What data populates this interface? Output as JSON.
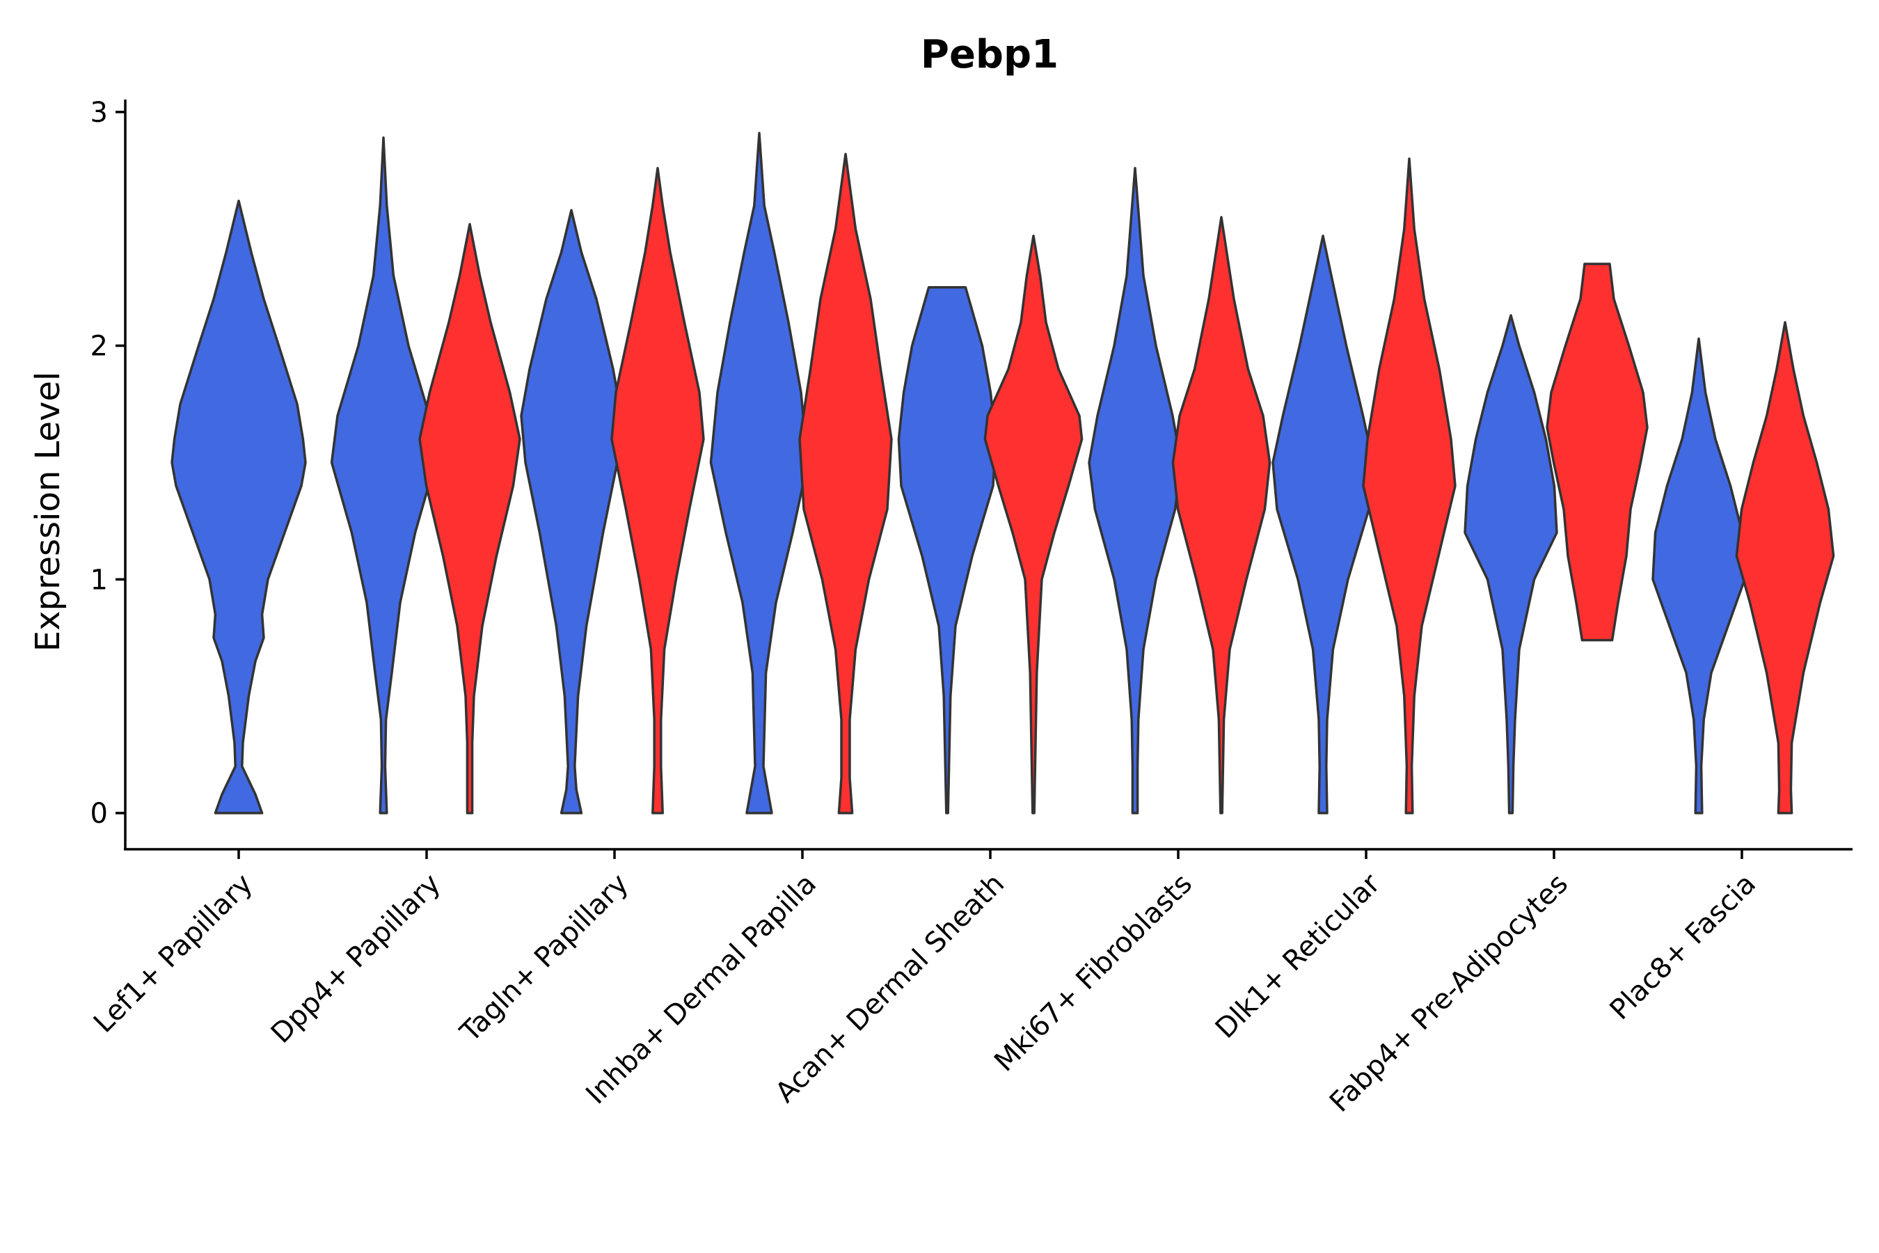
{
  "chart_data": {
    "type": "violin",
    "title": "Pebp1",
    "xlabel": "",
    "ylabel": "Expression Level",
    "ylim": [
      -0.15,
      3.05
    ],
    "yticks": [
      0,
      1,
      2,
      3
    ],
    "colors": {
      "blue": "#4169E1",
      "red": "#FF3030",
      "outline": "#333333"
    },
    "categories": [
      "Lef1+ Papillary",
      "Dpp4+ Papillary",
      "Tagln+ Papillary",
      "Inhba+ Dermal Papilla",
      "Acan+ Dermal Sheath",
      "Mki67+ Fibroblasts",
      "Dlk1+ Reticular",
      "Fabp4+ Pre-Adipocytes",
      "Plac8+ Fascia"
    ],
    "violins": [
      {
        "category": 0,
        "color": "blue",
        "min": 0,
        "max": 2.62,
        "profile": [
          [
            0,
            0.28
          ],
          [
            0.08,
            0.2
          ],
          [
            0.2,
            0.04
          ],
          [
            0.3,
            0.05
          ],
          [
            0.5,
            0.12
          ],
          [
            0.65,
            0.2
          ],
          [
            0.75,
            0.3
          ],
          [
            0.85,
            0.28
          ],
          [
            1.0,
            0.35
          ],
          [
            1.2,
            0.55
          ],
          [
            1.4,
            0.75
          ],
          [
            1.5,
            0.8
          ],
          [
            1.6,
            0.77
          ],
          [
            1.75,
            0.7
          ],
          [
            2.0,
            0.48
          ],
          [
            2.2,
            0.3
          ],
          [
            2.4,
            0.15
          ],
          [
            2.62,
            0
          ]
        ]
      },
      {
        "category": 1,
        "color": "blue",
        "min": 0,
        "max": 2.89,
        "profile": [
          [
            0,
            0.04
          ],
          [
            0.2,
            0.02
          ],
          [
            0.4,
            0.03
          ],
          [
            0.6,
            0.1
          ],
          [
            0.9,
            0.2
          ],
          [
            1.2,
            0.38
          ],
          [
            1.5,
            0.62
          ],
          [
            1.7,
            0.55
          ],
          [
            2.0,
            0.3
          ],
          [
            2.3,
            0.12
          ],
          [
            2.6,
            0.04
          ],
          [
            2.89,
            0
          ]
        ]
      },
      {
        "category": 1,
        "color": "red",
        "min": 0,
        "max": 2.52,
        "profile": [
          [
            0,
            0.03
          ],
          [
            0.3,
            0.03
          ],
          [
            0.5,
            0.05
          ],
          [
            0.8,
            0.15
          ],
          [
            1.1,
            0.32
          ],
          [
            1.4,
            0.52
          ],
          [
            1.6,
            0.6
          ],
          [
            1.8,
            0.48
          ],
          [
            2.1,
            0.25
          ],
          [
            2.3,
            0.12
          ],
          [
            2.52,
            0
          ]
        ]
      },
      {
        "category": 2,
        "color": "blue",
        "min": 0,
        "max": 2.58,
        "profile": [
          [
            0,
            0.12
          ],
          [
            0.1,
            0.06
          ],
          [
            0.2,
            0.04
          ],
          [
            0.5,
            0.08
          ],
          [
            0.8,
            0.18
          ],
          [
            1.2,
            0.38
          ],
          [
            1.5,
            0.55
          ],
          [
            1.7,
            0.6
          ],
          [
            1.9,
            0.5
          ],
          [
            2.2,
            0.3
          ],
          [
            2.4,
            0.12
          ],
          [
            2.58,
            0
          ]
        ]
      },
      {
        "category": 2,
        "color": "red",
        "min": 0,
        "max": 2.76,
        "profile": [
          [
            0,
            0.06
          ],
          [
            0.2,
            0.04
          ],
          [
            0.4,
            0.04
          ],
          [
            0.7,
            0.08
          ],
          [
            1.0,
            0.22
          ],
          [
            1.3,
            0.38
          ],
          [
            1.6,
            0.55
          ],
          [
            1.8,
            0.5
          ],
          [
            2.1,
            0.32
          ],
          [
            2.4,
            0.15
          ],
          [
            2.6,
            0.06
          ],
          [
            2.76,
            0
          ]
        ]
      },
      {
        "category": 3,
        "color": "blue",
        "min": 0,
        "max": 2.91,
        "profile": [
          [
            0,
            0.15
          ],
          [
            0.1,
            0.1
          ],
          [
            0.2,
            0.05
          ],
          [
            0.6,
            0.08
          ],
          [
            0.9,
            0.2
          ],
          [
            1.2,
            0.4
          ],
          [
            1.5,
            0.58
          ],
          [
            1.8,
            0.5
          ],
          [
            2.1,
            0.35
          ],
          [
            2.4,
            0.18
          ],
          [
            2.6,
            0.06
          ],
          [
            2.91,
            0
          ]
        ]
      },
      {
        "category": 3,
        "color": "red",
        "min": 0,
        "max": 2.82,
        "profile": [
          [
            0,
            0.08
          ],
          [
            0.15,
            0.05
          ],
          [
            0.4,
            0.05
          ],
          [
            0.7,
            0.12
          ],
          [
            1.0,
            0.28
          ],
          [
            1.3,
            0.5
          ],
          [
            1.6,
            0.55
          ],
          [
            1.9,
            0.42
          ],
          [
            2.2,
            0.3
          ],
          [
            2.5,
            0.12
          ],
          [
            2.82,
            0
          ]
        ]
      },
      {
        "category": 4,
        "color": "blue",
        "min": 0,
        "max": 2.25,
        "profile": [
          [
            0,
            0.01
          ],
          [
            0.5,
            0.04
          ],
          [
            0.8,
            0.1
          ],
          [
            1.1,
            0.3
          ],
          [
            1.4,
            0.55
          ],
          [
            1.6,
            0.58
          ],
          [
            1.8,
            0.52
          ],
          [
            2.0,
            0.42
          ],
          [
            2.15,
            0.3
          ],
          [
            2.25,
            0.22
          ],
          [
            2.25,
            0
          ]
        ]
      },
      {
        "category": 4,
        "color": "red",
        "min": 0,
        "max": 2.47,
        "profile": [
          [
            0,
            0.01
          ],
          [
            0.6,
            0.04
          ],
          [
            1.0,
            0.1
          ],
          [
            1.2,
            0.25
          ],
          [
            1.4,
            0.42
          ],
          [
            1.6,
            0.58
          ],
          [
            1.7,
            0.55
          ],
          [
            1.9,
            0.3
          ],
          [
            2.1,
            0.15
          ],
          [
            2.3,
            0.08
          ],
          [
            2.47,
            0
          ]
        ]
      },
      {
        "category": 5,
        "color": "blue",
        "min": 0,
        "max": 2.76,
        "profile": [
          [
            0,
            0.03
          ],
          [
            0.2,
            0.03
          ],
          [
            0.4,
            0.04
          ],
          [
            0.7,
            0.1
          ],
          [
            1.0,
            0.25
          ],
          [
            1.3,
            0.48
          ],
          [
            1.5,
            0.55
          ],
          [
            1.7,
            0.45
          ],
          [
            2.0,
            0.25
          ],
          [
            2.3,
            0.1
          ],
          [
            2.76,
            0
          ]
        ]
      },
      {
        "category": 5,
        "color": "red",
        "min": 0,
        "max": 2.55,
        "profile": [
          [
            0,
            0.01
          ],
          [
            0.4,
            0.03
          ],
          [
            0.7,
            0.1
          ],
          [
            1.0,
            0.3
          ],
          [
            1.3,
            0.52
          ],
          [
            1.5,
            0.58
          ],
          [
            1.7,
            0.5
          ],
          [
            1.9,
            0.32
          ],
          [
            2.2,
            0.15
          ],
          [
            2.55,
            0
          ]
        ]
      },
      {
        "category": 6,
        "color": "blue",
        "min": 0,
        "max": 2.47,
        "profile": [
          [
            0,
            0.05
          ],
          [
            0.2,
            0.04
          ],
          [
            0.4,
            0.05
          ],
          [
            0.7,
            0.12
          ],
          [
            1.0,
            0.3
          ],
          [
            1.3,
            0.55
          ],
          [
            1.5,
            0.6
          ],
          [
            1.7,
            0.48
          ],
          [
            2.0,
            0.28
          ],
          [
            2.3,
            0.1
          ],
          [
            2.47,
            0
          ]
        ]
      },
      {
        "category": 6,
        "color": "red",
        "min": 0,
        "max": 2.8,
        "profile": [
          [
            0,
            0.04
          ],
          [
            0.2,
            0.03
          ],
          [
            0.5,
            0.06
          ],
          [
            0.8,
            0.15
          ],
          [
            1.1,
            0.35
          ],
          [
            1.4,
            0.55
          ],
          [
            1.6,
            0.5
          ],
          [
            1.9,
            0.36
          ],
          [
            2.2,
            0.18
          ],
          [
            2.5,
            0.06
          ],
          [
            2.8,
            0
          ]
        ]
      },
      {
        "category": 7,
        "color": "blue",
        "min": 0,
        "max": 2.13,
        "profile": [
          [
            0,
            0.02
          ],
          [
            0.2,
            0.03
          ],
          [
            0.4,
            0.05
          ],
          [
            0.7,
            0.1
          ],
          [
            1.0,
            0.28
          ],
          [
            1.2,
            0.55
          ],
          [
            1.4,
            0.52
          ],
          [
            1.6,
            0.42
          ],
          [
            1.8,
            0.28
          ],
          [
            2.0,
            0.1
          ],
          [
            2.13,
            0
          ]
        ]
      },
      {
        "category": 7,
        "color": "red",
        "min": 0.74,
        "max": 2.35,
        "profile": [
          [
            0.74,
            0.18
          ],
          [
            0.9,
            0.25
          ],
          [
            1.1,
            0.35
          ],
          [
            1.3,
            0.4
          ],
          [
            1.5,
            0.52
          ],
          [
            1.65,
            0.6
          ],
          [
            1.8,
            0.55
          ],
          [
            2.0,
            0.38
          ],
          [
            2.2,
            0.2
          ],
          [
            2.35,
            0.15
          ],
          [
            2.35,
            0
          ]
        ]
      },
      {
        "category": 8,
        "color": "blue",
        "min": 0,
        "max": 2.03,
        "profile": [
          [
            0,
            0.04
          ],
          [
            0.2,
            0.03
          ],
          [
            0.4,
            0.06
          ],
          [
            0.6,
            0.15
          ],
          [
            0.8,
            0.35
          ],
          [
            1.0,
            0.55
          ],
          [
            1.2,
            0.52
          ],
          [
            1.4,
            0.38
          ],
          [
            1.6,
            0.2
          ],
          [
            1.8,
            0.08
          ],
          [
            2.03,
            0
          ]
        ]
      },
      {
        "category": 8,
        "color": "red",
        "min": 0,
        "max": 2.1,
        "profile": [
          [
            0,
            0.08
          ],
          [
            0.1,
            0.07
          ],
          [
            0.3,
            0.08
          ],
          [
            0.6,
            0.22
          ],
          [
            0.9,
            0.42
          ],
          [
            1.1,
            0.58
          ],
          [
            1.3,
            0.52
          ],
          [
            1.5,
            0.38
          ],
          [
            1.7,
            0.22
          ],
          [
            1.9,
            0.1
          ],
          [
            2.1,
            0
          ]
        ]
      }
    ]
  }
}
